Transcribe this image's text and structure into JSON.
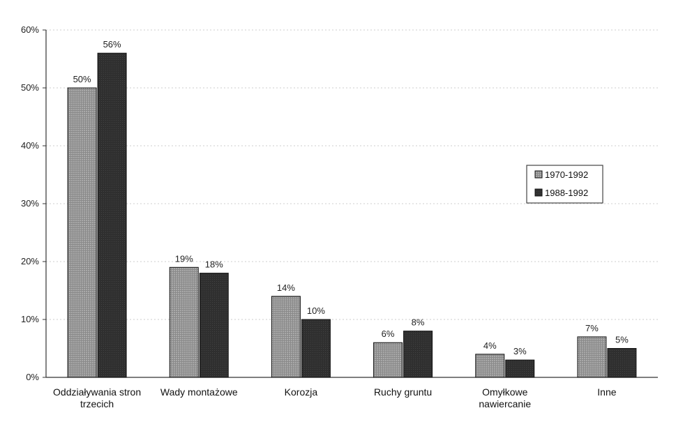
{
  "chart_data": {
    "type": "bar",
    "title": "",
    "xlabel": "",
    "ylabel": "",
    "categories": [
      [
        "Oddziaływania stron",
        "trzecich"
      ],
      [
        "Wady montażowe"
      ],
      [
        "Korozja"
      ],
      [
        "Ruchy gruntu"
      ],
      [
        "Omyłkowe",
        "nawiercanie"
      ],
      [
        "Inne"
      ]
    ],
    "series": [
      {
        "name": "1970-1992",
        "values": [
          50,
          19,
          14,
          6,
          4,
          7
        ],
        "labels": [
          "50%",
          "19%",
          "14%",
          "6%",
          "4%",
          "7%"
        ],
        "color": "#7a7a7a"
      },
      {
        "name": "1988-1992",
        "values": [
          56,
          18,
          10,
          8,
          3,
          5
        ],
        "labels": [
          "56%",
          "18%",
          "10%",
          "8%",
          "3%",
          "5%"
        ],
        "color": "#2e2e2e"
      }
    ],
    "ylim": [
      0,
      60
    ],
    "yticks": [
      0,
      10,
      20,
      30,
      40,
      50,
      60
    ],
    "ytick_labels": [
      "0%",
      "10%",
      "20%",
      "30%",
      "40%",
      "50%",
      "60%"
    ],
    "grid": true,
    "legend_position": "right"
  }
}
